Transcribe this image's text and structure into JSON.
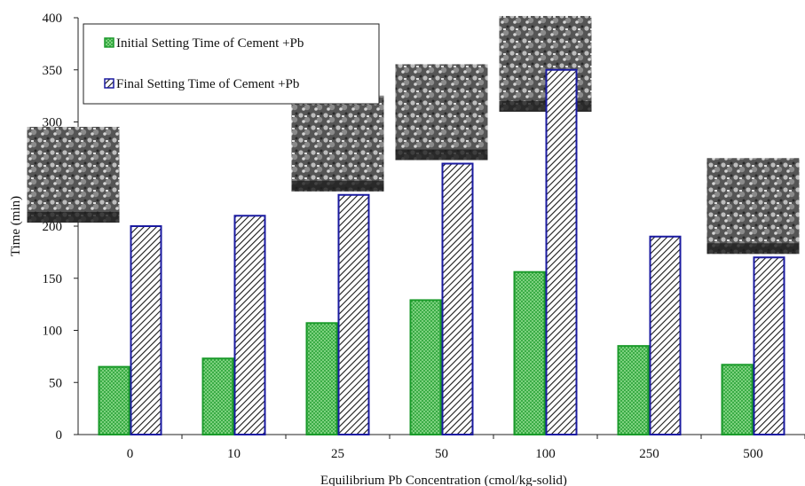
{
  "chart_data": {
    "type": "bar",
    "title": "",
    "xlabel": "Equilibrium Pb Concentration (cmol/kg-solid)",
    "ylabel": "Time (min)",
    "ylim": [
      0,
      400
    ],
    "yticks": [
      0,
      50,
      100,
      150,
      200,
      250,
      300,
      350,
      400
    ],
    "categories": [
      "0",
      "10",
      "25",
      "50",
      "100",
      "250",
      "500"
    ],
    "series": [
      {
        "name": "Initial Setting Time of Cement +Pb",
        "values": [
          65,
          73,
          107,
          129,
          156,
          85,
          67
        ],
        "color": "#1a9a2a",
        "fill": "#8fdc8f",
        "pattern": "crosshatch"
      },
      {
        "name": "Final Setting Time of Cement +Pb",
        "values": [
          200,
          210,
          230,
          260,
          350,
          190,
          170
        ],
        "color": "#1a1aa0",
        "fill": "#ffffff",
        "pattern": "diagonal"
      }
    ],
    "legend_position": "top-left",
    "grid": false,
    "insets": [
      {
        "description": "SEM micrograph",
        "category": "0"
      },
      {
        "description": "SEM micrograph",
        "category": "25"
      },
      {
        "description": "SEM micrograph",
        "category": "50"
      },
      {
        "description": "SEM micrograph",
        "category": "100"
      },
      {
        "description": "SEM micrograph",
        "category": "500"
      }
    ]
  }
}
